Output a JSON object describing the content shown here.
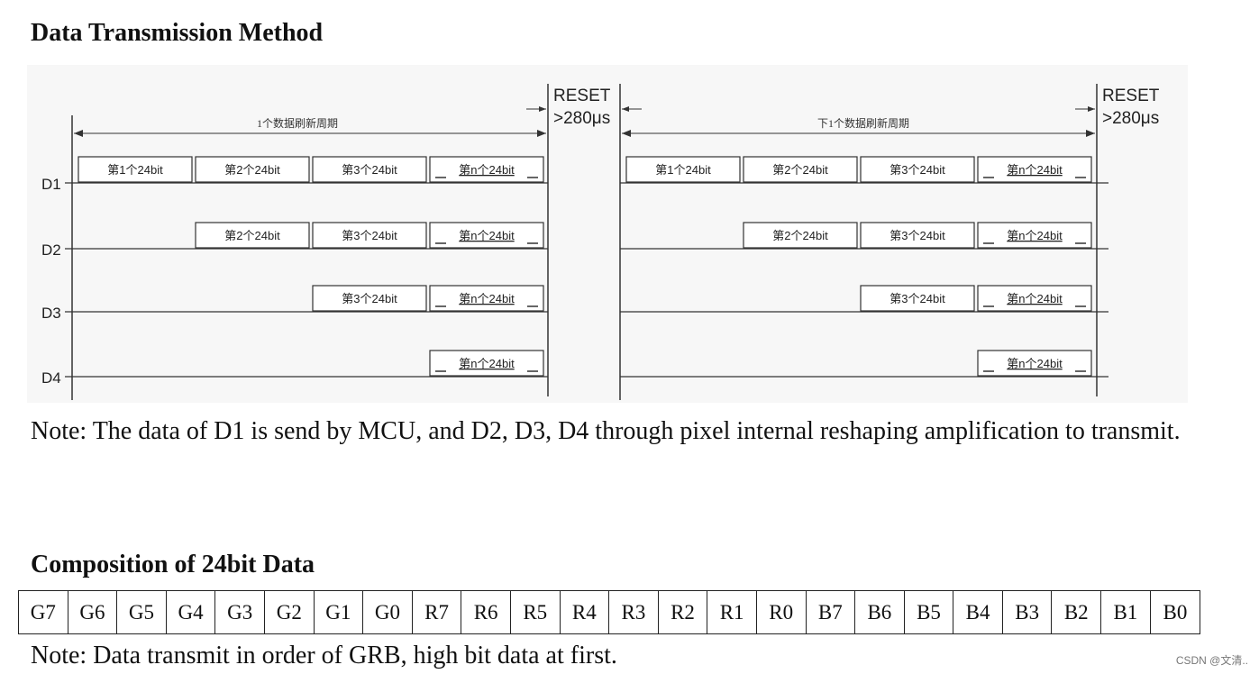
{
  "section1": {
    "title": "Data Transmission Method"
  },
  "diagram": {
    "lines": [
      "D1",
      "D2",
      "D3",
      "D4"
    ],
    "reset_label": "RESET",
    "reset_time": ">280μs",
    "period_label": "1个数据刷新周期",
    "next_period_label": "下1个数据刷新周期",
    "packets": [
      "第1个24bit",
      "第2个24bit",
      "第3个24bit",
      "第n个24bit"
    ]
  },
  "note1": "Note: The data of D1 is send by MCU, and D2, D3, D4 through pixel internal reshaping amplification to transmit.",
  "section2": {
    "title": "Composition of 24bit Data"
  },
  "bits": [
    "G7",
    "G6",
    "G5",
    "G4",
    "G3",
    "G2",
    "G1",
    "G0",
    "R7",
    "R6",
    "R5",
    "R4",
    "R3",
    "R2",
    "R1",
    "R0",
    "B7",
    "B6",
    "B5",
    "B4",
    "B3",
    "B2",
    "B1",
    "B0"
  ],
  "note2": "Note: Data transmit in order of GRB, high bit data at first.",
  "watermark": "CSDN @文清.."
}
